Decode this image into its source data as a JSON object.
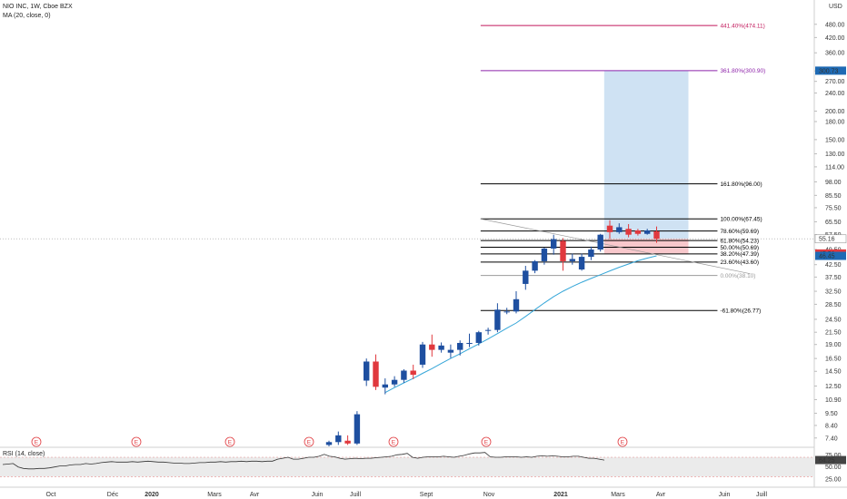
{
  "header": {
    "title": "NIO INC, 1W, Cboe BZX",
    "ma_label": "MA (20, close, 0)",
    "rsi_label": "RSI (14, close)",
    "currency": "USD"
  },
  "colors": {
    "up": "#1e4fa0",
    "down": "#e0393e",
    "ma": "#35a6d8",
    "long_zone": "#cfe2f3",
    "short_zone": "#f8c8cc",
    "fib_ext1": "#c2185b",
    "fib_ext2": "#8e24aa",
    "rsi_line": "#333333",
    "rsi_band": "#ebebeb"
  },
  "chart_data": {
    "type": "candlestick",
    "scale": "log",
    "ylim": [
      6.8,
      570
    ],
    "y_ticks": [
      "480.00",
      "420.00",
      "360.00",
      "300.00",
      "270.00",
      "240.00",
      "200.00",
      "180.00",
      "150.00",
      "130.00",
      "114.00",
      "98.00",
      "85.50",
      "75.50",
      "65.50",
      "57.50",
      "49.50",
      "42.50",
      "37.50",
      "32.50",
      "28.50",
      "24.50",
      "21.50",
      "19.00",
      "16.50",
      "14.50",
      "12.50",
      "10.90",
      "9.50",
      "8.40",
      "7.40"
    ],
    "x_ticks": [
      "Oct",
      "Déc",
      "2020",
      "Mars",
      "Avr",
      "Juin",
      "Juill",
      "Sept",
      "Nov",
      "2021",
      "Mars",
      "Avr",
      "Juin",
      "Juill"
    ],
    "price_badges": [
      {
        "label": "300.73",
        "value": 300.73,
        "color": "#1e6ab4"
      },
      {
        "label": "55.16",
        "value": 55.16,
        "color": "#ffffff"
      },
      {
        "label": "47.58",
        "value": 47.58,
        "color": "#e0393e"
      },
      {
        "label": "46.45",
        "value": 46.45,
        "color": "#1e6ab4"
      }
    ],
    "fib_levels": [
      {
        "label": "441.40%(474.11)",
        "value": 474.11,
        "color": "#c2185b"
      },
      {
        "label": "361.80%(300.90)",
        "value": 300.9,
        "color": "#8e24aa"
      },
      {
        "label": "161.80%(96.00)",
        "value": 96.0,
        "color": "#000000"
      },
      {
        "label": "100.00%(67.45)",
        "value": 67.45,
        "color": "#000000"
      },
      {
        "label": "78.60%(59.69)",
        "value": 59.69,
        "color": "#000000"
      },
      {
        "label": "61.80%(54.23)",
        "value": 54.23,
        "color": "#000000"
      },
      {
        "label": "50.00%(50.69)",
        "value": 50.69,
        "color": "#000000"
      },
      {
        "label": "38.20%(47.39)",
        "value": 47.39,
        "color": "#000000"
      },
      {
        "label": "23.60%(43.60)",
        "value": 43.6,
        "color": "#000000"
      },
      {
        "label": "0.00%(38.10)",
        "value": 38.1,
        "color": "#999999"
      },
      {
        "label": "-61.80%(26.77)",
        "value": 26.77,
        "color": "#000000"
      }
    ],
    "candles": [
      {
        "week": 0,
        "o": 6.9,
        "h": 7.2,
        "l": 6.8,
        "c": 7.1
      },
      {
        "week": 1,
        "o": 7.1,
        "h": 7.9,
        "l": 6.9,
        "c": 7.6
      },
      {
        "week": 2,
        "o": 7.2,
        "h": 7.6,
        "l": 6.9,
        "c": 7.0
      },
      {
        "week": 3,
        "o": 7.0,
        "h": 9.7,
        "l": 6.9,
        "c": 9.4
      },
      {
        "week": 4,
        "o": 13.2,
        "h": 16.5,
        "l": 12.5,
        "c": 16.0
      },
      {
        "week": 5,
        "o": 16.0,
        "h": 17.2,
        "l": 12.0,
        "c": 12.4
      },
      {
        "week": 6,
        "o": 12.3,
        "h": 13.5,
        "l": 11.5,
        "c": 12.7
      },
      {
        "week": 7,
        "o": 12.7,
        "h": 13.8,
        "l": 12.4,
        "c": 13.3
      },
      {
        "week": 8,
        "o": 13.3,
        "h": 14.8,
        "l": 12.9,
        "c": 14.6
      },
      {
        "week": 9,
        "o": 14.6,
        "h": 15.5,
        "l": 13.4,
        "c": 14.0
      },
      {
        "week": 10,
        "o": 15.5,
        "h": 19.5,
        "l": 15.0,
        "c": 19.0
      },
      {
        "week": 11,
        "o": 19.0,
        "h": 21.0,
        "l": 16.8,
        "c": 18.0
      },
      {
        "week": 12,
        "o": 18.0,
        "h": 19.4,
        "l": 17.5,
        "c": 18.8
      },
      {
        "week": 13,
        "o": 17.5,
        "h": 19.0,
        "l": 16.6,
        "c": 18.0
      },
      {
        "week": 14,
        "o": 18.0,
        "h": 19.8,
        "l": 17.0,
        "c": 19.3
      },
      {
        "week": 15,
        "o": 19.3,
        "h": 21.2,
        "l": 18.5,
        "c": 19.3
      },
      {
        "week": 16,
        "o": 19.3,
        "h": 21.8,
        "l": 18.8,
        "c": 21.5
      },
      {
        "week": 17,
        "o": 21.8,
        "h": 22.5,
        "l": 21.0,
        "c": 22.0
      },
      {
        "week": 18,
        "o": 22.0,
        "h": 28.8,
        "l": 21.5,
        "c": 27.0
      },
      {
        "week": 19,
        "o": 26.5,
        "h": 27.5,
        "l": 25.8,
        "c": 26.5
      },
      {
        "week": 20,
        "o": 26.5,
        "h": 32.5,
        "l": 26.0,
        "c": 30.0
      },
      {
        "week": 21,
        "o": 35.0,
        "h": 42.0,
        "l": 33.0,
        "c": 40.0
      },
      {
        "week": 22,
        "o": 40.0,
        "h": 44.5,
        "l": 39.0,
        "c": 44.0
      },
      {
        "week": 23,
        "o": 44.0,
        "h": 50.5,
        "l": 42.5,
        "c": 50.0
      },
      {
        "week": 24,
        "o": 50.0,
        "h": 57.5,
        "l": 47.0,
        "c": 55.0
      },
      {
        "week": 25,
        "o": 54.0,
        "h": 55.5,
        "l": 40.0,
        "c": 44.0
      },
      {
        "week": 26,
        "o": 44.0,
        "h": 47.5,
        "l": 42.5,
        "c": 45.0
      },
      {
        "week": 27,
        "o": 40.5,
        "h": 47.5,
        "l": 40.0,
        "c": 46.0
      },
      {
        "week": 28,
        "o": 46.0,
        "h": 51.0,
        "l": 44.5,
        "c": 49.5
      },
      {
        "week": 29,
        "o": 49.5,
        "h": 58.0,
        "l": 48.5,
        "c": 57.5
      },
      {
        "week": 30,
        "o": 63.0,
        "h": 66.5,
        "l": 55.0,
        "c": 59.0
      },
      {
        "week": 31,
        "o": 59.0,
        "h": 64.5,
        "l": 58.0,
        "c": 62.0
      },
      {
        "week": 32,
        "o": 61.0,
        "h": 64.0,
        "l": 56.0,
        "c": 57.5
      },
      {
        "week": 33,
        "o": 60.0,
        "h": 61.0,
        "l": 57.0,
        "c": 58.0
      },
      {
        "week": 34,
        "o": 58.0,
        "h": 61.0,
        "l": 57.5,
        "c": 60.0
      },
      {
        "week": 35,
        "o": 59.5,
        "h": 62.5,
        "l": 53.0,
        "c": 55.2
      }
    ],
    "ma_values": [
      8.0,
      8.5,
      9.0,
      9.6,
      10.3,
      11.0,
      11.7,
      12.3,
      12.9,
      13.5,
      14.2,
      14.9,
      15.7,
      16.5,
      17.3,
      18.2,
      19.1,
      20.1,
      21.2,
      22.4,
      23.6,
      25.2,
      27.0,
      28.9,
      30.8,
      32.5,
      34.1,
      35.6,
      37.0,
      38.4,
      39.9,
      41.4,
      42.8,
      44.2,
      45.4,
      46.45
    ],
    "rsi": {
      "ticks": [
        "75.00",
        "50.00",
        "25.00"
      ],
      "value_badge": "64.25",
      "values": [
        55,
        56,
        57,
        50,
        47,
        46,
        46,
        47,
        47,
        48,
        50,
        52,
        52,
        54,
        55,
        55,
        57,
        56,
        57,
        59,
        60,
        61,
        60,
        60,
        60,
        61,
        60,
        61,
        62,
        61,
        60,
        60,
        59,
        58,
        58,
        57,
        57,
        58,
        59,
        59,
        60,
        60,
        61,
        60,
        61,
        61,
        62,
        61,
        62,
        62,
        61,
        62,
        62,
        66,
        68,
        70,
        66,
        66,
        68,
        70,
        70,
        72,
        76,
        72,
        71,
        68,
        66,
        67,
        68,
        67,
        68,
        68,
        69,
        70,
        71,
        72,
        75,
        76,
        78,
        70,
        68,
        70,
        71,
        71,
        71,
        72,
        71,
        70,
        72,
        74,
        77,
        79,
        79,
        80,
        71,
        70,
        70,
        71,
        71,
        71,
        70,
        71,
        70,
        72,
        73,
        72,
        73,
        72,
        71,
        71,
        72,
        72,
        70,
        68,
        68,
        66,
        64.25
      ]
    },
    "earnings_markers": [
      "E",
      "E",
      "E",
      "E",
      "E",
      "E",
      "E"
    ]
  }
}
